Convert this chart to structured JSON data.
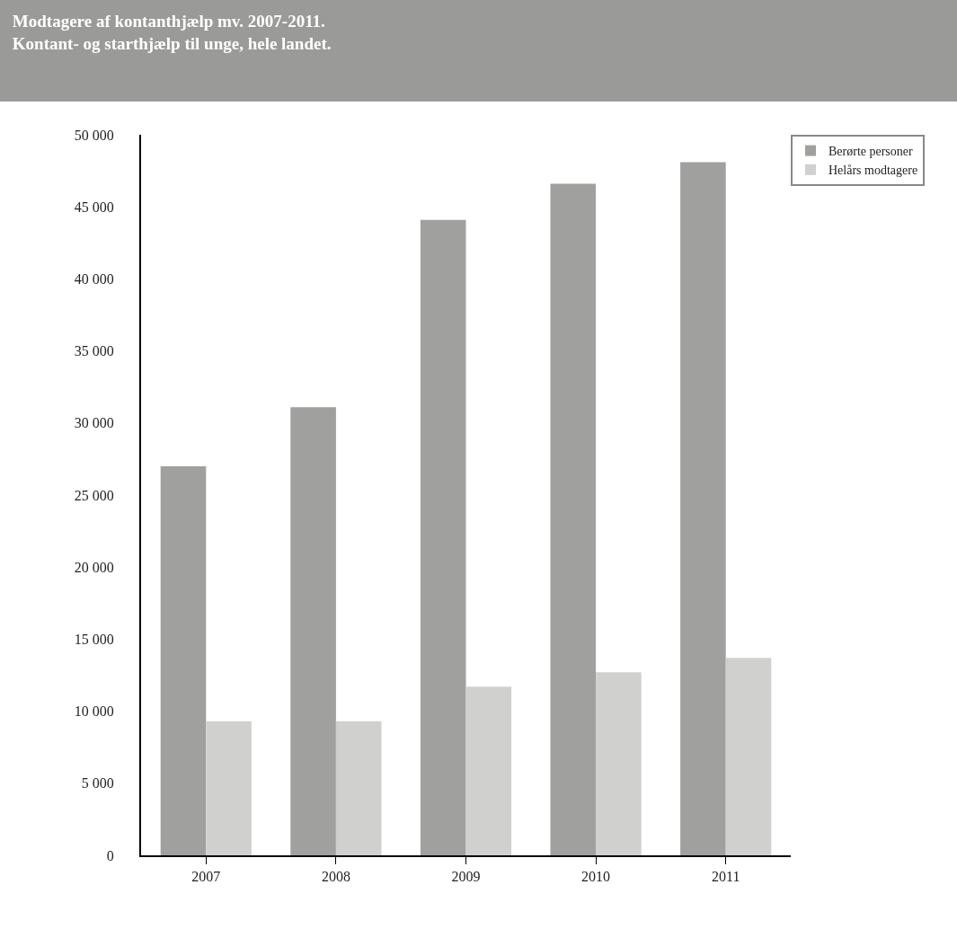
{
  "chart_data": {
    "type": "bar",
    "title": "Modtagere af kontanthjælp mv. 2007-2011.\nKontant- og starthjælp til unge, hele landet.",
    "categories": [
      "2007",
      "2008",
      "2009",
      "2010",
      "2011"
    ],
    "series": [
      {
        "name": "Berørte personer",
        "color": "#a0a19f",
        "values": [
          27000,
          31100,
          44100,
          46600,
          48100
        ]
      },
      {
        "name": "Helårs modtagere",
        "color": "#d0d1cf",
        "values": [
          9300,
          9300,
          11700,
          12700,
          13700
        ]
      }
    ],
    "ylim": [
      0,
      50000
    ],
    "yticks": [
      0,
      {
        "value": 5000,
        "label": "5 000"
      },
      {
        "value": 10000,
        "label": "10 000"
      },
      {
        "value": 15000,
        "label": "15 000"
      },
      {
        "value": 20000,
        "label": "20 000"
      },
      {
        "value": 25000,
        "label": "25 000"
      },
      {
        "value": 30000,
        "label": "30 000"
      },
      {
        "value": 35000,
        "label": "35 000"
      },
      {
        "value": 40000,
        "label": "40 000"
      },
      {
        "value": 45000,
        "label": "45 000"
      },
      {
        "value": 50000,
        "label": "50 000"
      }
    ],
    "legend": "top right"
  }
}
